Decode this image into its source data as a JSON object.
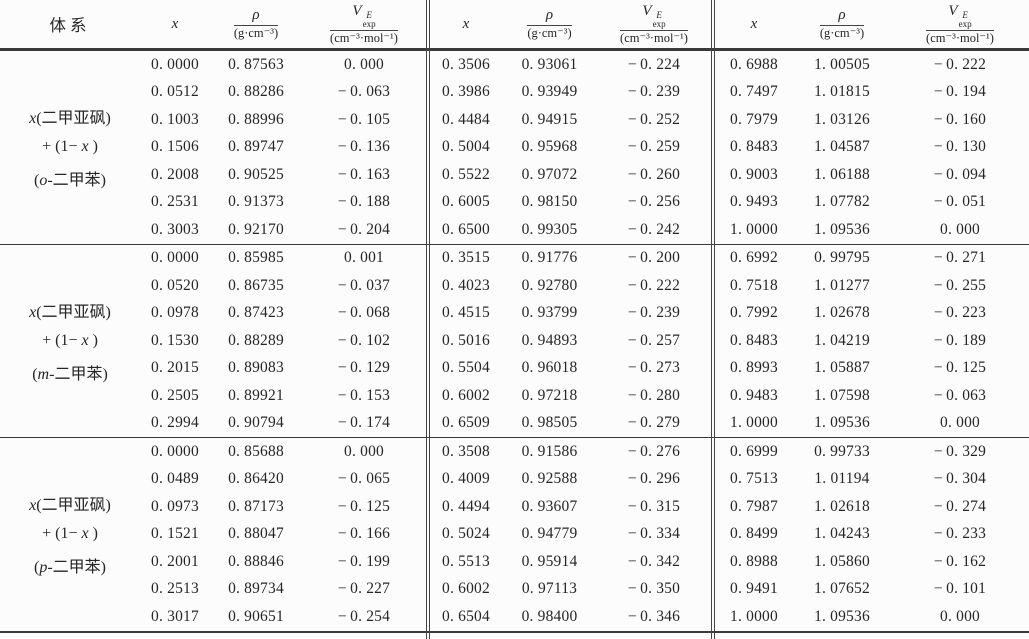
{
  "page": {
    "background": "#fcfcfc",
    "text_color": "#262626",
    "rule_color": "#3a3a3a"
  },
  "table": {
    "headers": {
      "system": "体系",
      "x": "x",
      "rho_numerator": "ρ",
      "rho_denominator": "(g·cm⁻³)",
      "v_base": "V",
      "v_sup": "E",
      "v_sub": "exp",
      "v_denominator": "(cm⁻³·mol⁻¹)"
    },
    "columns_per_block": [
      "x",
      "rho",
      "v_exp"
    ],
    "groups": [
      {
        "label_lines": [
          [
            {
              "t": "x",
              "i": true
            },
            {
              "t": "(二甲亚砜)"
            }
          ],
          [
            {
              "t": "+ (1− "
            },
            {
              "t": "x",
              "i": true
            },
            {
              "t": " )"
            }
          ],
          [
            {
              "t": "("
            },
            {
              "t": "o",
              "i": true
            },
            {
              "t": "-二甲苯)"
            }
          ]
        ],
        "blocks": [
          [
            [
              "0.0000",
              "0.87563",
              "0.000"
            ],
            [
              "0.0512",
              "0.88286",
              "-0.063"
            ],
            [
              "0.1003",
              "0.88996",
              "-0.105"
            ],
            [
              "0.1506",
              "0.89747",
              "-0.136"
            ],
            [
              "0.2008",
              "0.90525",
              "-0.163"
            ],
            [
              "0.2531",
              "0.91373",
              "-0.188"
            ],
            [
              "0.3003",
              "0.92170",
              "-0.204"
            ]
          ],
          [
            [
              "0.3506",
              "0.93061",
              "-0.224"
            ],
            [
              "0.3986",
              "0.93949",
              "-0.239"
            ],
            [
              "0.4484",
              "0.94915",
              "-0.252"
            ],
            [
              "0.5004",
              "0.95968",
              "-0.259"
            ],
            [
              "0.5522",
              "0.97072",
              "-0.260"
            ],
            [
              "0.6005",
              "0.98150",
              "-0.256"
            ],
            [
              "0.6500",
              "0.99305",
              "-0.242"
            ]
          ],
          [
            [
              "0.6988",
              "1.00505",
              "-0.222"
            ],
            [
              "0.7497",
              "1.01815",
              "-0.194"
            ],
            [
              "0.7979",
              "1.03126",
              "-0.160"
            ],
            [
              "0.8483",
              "1.04587",
              "-0.130"
            ],
            [
              "0.9003",
              "1.06188",
              "-0.094"
            ],
            [
              "0.9493",
              "1.07782",
              "-0.051"
            ],
            [
              "1.0000",
              "1.09536",
              "0.000"
            ]
          ]
        ]
      },
      {
        "label_lines": [
          [
            {
              "t": "x",
              "i": true
            },
            {
              "t": "(二甲亚砜)"
            }
          ],
          [
            {
              "t": "+ (1− "
            },
            {
              "t": "x",
              "i": true
            },
            {
              "t": " )"
            }
          ],
          [
            {
              "t": "("
            },
            {
              "t": "m",
              "i": true
            },
            {
              "t": "-二甲苯)"
            }
          ]
        ],
        "blocks": [
          [
            [
              "0.0000",
              "0.85985",
              "0.001"
            ],
            [
              "0.0520",
              "0.86735",
              "-0.037"
            ],
            [
              "0.0978",
              "0.87423",
              "-0.068"
            ],
            [
              "0.1530",
              "0.88289",
              "-0.102"
            ],
            [
              "0.2015",
              "0.89083",
              "-0.129"
            ],
            [
              "0.2505",
              "0.89921",
              "-0.153"
            ],
            [
              "0.2994",
              "0.90794",
              "-0.174"
            ]
          ],
          [
            [
              "0.3515",
              "0.91776",
              "-0.200"
            ],
            [
              "0.4023",
              "0.92780",
              "-0.222"
            ],
            [
              "0.4515",
              "0.93799",
              "-0.239"
            ],
            [
              "0.5016",
              "0.94893",
              "-0.257"
            ],
            [
              "0.5504",
              "0.96018",
              "-0.273"
            ],
            [
              "0.6002",
              "0.97218",
              "-0.280"
            ],
            [
              "0.6509",
              "0.98505",
              "-0.279"
            ]
          ],
          [
            [
              "0.6992",
              "0.99795",
              "-0.271"
            ],
            [
              "0.7518",
              "1.01277",
              "-0.255"
            ],
            [
              "0.7992",
              "1.02678",
              "-0.223"
            ],
            [
              "0.8483",
              "1.04219",
              "-0.189"
            ],
            [
              "0.8993",
              "1.05887",
              "-0.125"
            ],
            [
              "0.9483",
              "1.07598",
              "-0.063"
            ],
            [
              "1.0000",
              "1.09536",
              "0.000"
            ]
          ]
        ]
      },
      {
        "label_lines": [
          [
            {
              "t": "x",
              "i": true
            },
            {
              "t": "(二甲亚砜)"
            }
          ],
          [
            {
              "t": "+ (1− "
            },
            {
              "t": "x",
              "i": true
            },
            {
              "t": " )"
            }
          ],
          [
            {
              "t": "("
            },
            {
              "t": "p",
              "i": true
            },
            {
              "t": "-二甲苯)"
            }
          ]
        ],
        "blocks": [
          [
            [
              "0.0000",
              "0.85688",
              "0.000"
            ],
            [
              "0.0489",
              "0.86420",
              "-0.065"
            ],
            [
              "0.0973",
              "0.87173",
              "-0.125"
            ],
            [
              "0.1521",
              "0.88047",
              "-0.166"
            ],
            [
              "0.2001",
              "0.88846",
              "-0.199"
            ],
            [
              "0.2513",
              "0.89734",
              "-0.227"
            ],
            [
              "0.3017",
              "0.90651",
              "-0.254"
            ]
          ],
          [
            [
              "0.3508",
              "0.91586",
              "-0.276"
            ],
            [
              "0.4009",
              "0.92588",
              "-0.296"
            ],
            [
              "0.4494",
              "0.93607",
              "-0.315"
            ],
            [
              "0.5024",
              "0.94779",
              "-0.334"
            ],
            [
              "0.5513",
              "0.95914",
              "-0.342"
            ],
            [
              "0.6002",
              "0.97113",
              "-0.350"
            ],
            [
              "0.6504",
              "0.98400",
              "-0.346"
            ]
          ],
          [
            [
              "0.6999",
              "0.99733",
              "-0.329"
            ],
            [
              "0.7513",
              "1.01194",
              "-0.304"
            ],
            [
              "0.7987",
              "1.02618",
              "-0.274"
            ],
            [
              "0.8499",
              "1.04243",
              "-0.233"
            ],
            [
              "0.8988",
              "1.05860",
              "-0.162"
            ],
            [
              "0.9491",
              "1.07652",
              "-0.101"
            ],
            [
              "1.0000",
              "1.09536",
              "0.000"
            ]
          ]
        ]
      }
    ]
  }
}
